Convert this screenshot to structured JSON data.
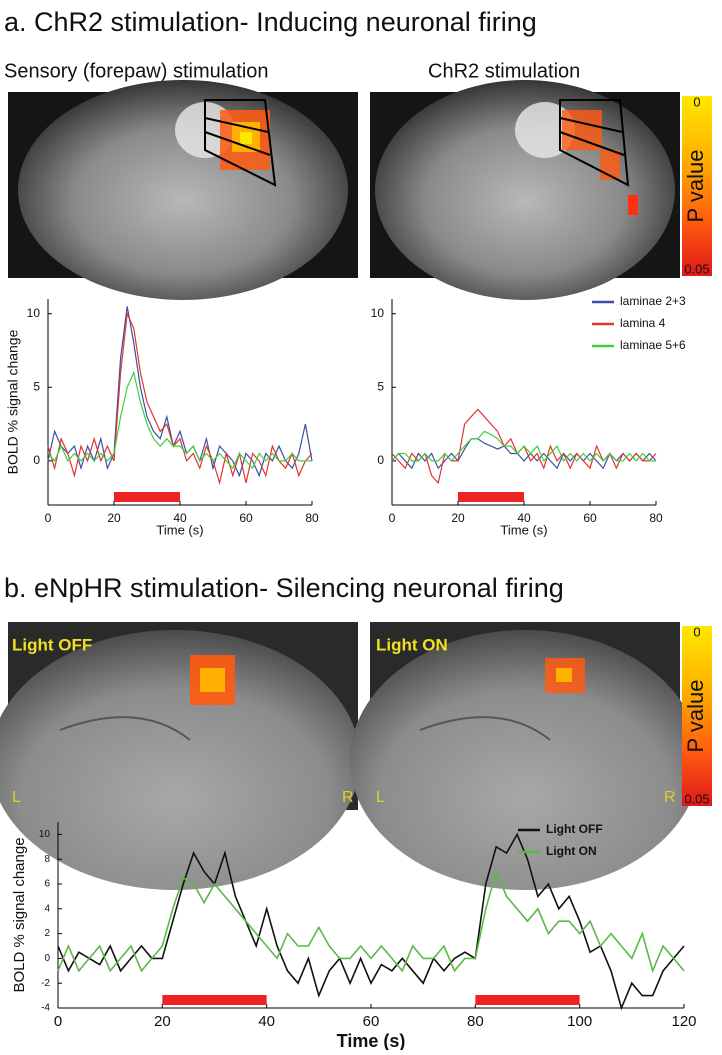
{
  "panel_a": {
    "title": "a. ChR2 stimulation- Inducing neuronal firing",
    "image_titles": [
      "Sensory (forepaw) stimulation",
      "ChR2 stimulation"
    ],
    "colorbar": {
      "label": "P value",
      "ticks": [
        0,
        0.05
      ]
    }
  },
  "panel_b": {
    "title": "b. eNpHR stimulation- Silencing neuronal firing",
    "image_labels": [
      "Light OFF",
      "Light ON"
    ],
    "side_labels": [
      "L",
      "R",
      "L",
      "R"
    ],
    "colorbar": {
      "label": "P value",
      "ticks": [
        0,
        0.05
      ]
    }
  },
  "chart_data": [
    {
      "type": "line",
      "xlabel": "Time (s)",
      "ylabel": "BOLD % signal change",
      "x": [
        0,
        2,
        4,
        6,
        8,
        10,
        12,
        14,
        16,
        18,
        20,
        22,
        24,
        26,
        28,
        30,
        32,
        34,
        36,
        38,
        40,
        42,
        44,
        46,
        48,
        50,
        52,
        54,
        56,
        58,
        60,
        62,
        64,
        66,
        68,
        70,
        72,
        74,
        76,
        78,
        80
      ],
      "series": [
        {
          "color": "#3b4fa6",
          "values": [
            0,
            2,
            1,
            0.5,
            1,
            -0.5,
            1,
            0,
            1.5,
            -0.5,
            0.5,
            7,
            10.5,
            8,
            5,
            3,
            2,
            1.5,
            3,
            1,
            2,
            0.5,
            1,
            0,
            1.5,
            -0.5,
            1,
            0.5,
            0,
            -1,
            0.5,
            0,
            -1,
            0.5,
            0,
            1,
            0,
            -0.5,
            0.5,
            2.5,
            0
          ]
        },
        {
          "color": "#e0342c",
          "values": [
            1,
            -0.5,
            1.5,
            0.5,
            -1,
            1,
            0,
            1.5,
            0,
            1,
            0,
            6,
            10,
            9,
            6,
            4,
            3,
            2,
            2.5,
            1,
            1.5,
            0,
            0.5,
            -0.5,
            1,
            0,
            -1.5,
            0.5,
            -1,
            0.5,
            -1.5,
            0.5,
            0,
            -1,
            1,
            0,
            -0.5,
            0.5,
            -1,
            0,
            0.5
          ]
        },
        {
          "color": "#3ecf3e",
          "values": [
            0.5,
            0,
            1,
            0,
            0.5,
            0,
            0.5,
            0,
            0.5,
            0,
            0.5,
            3,
            5,
            6,
            4,
            2.5,
            1.5,
            1,
            1.5,
            1,
            1,
            0.5,
            1,
            0,
            0.5,
            0,
            0.5,
            0,
            -0.5,
            0.5,
            0,
            -0.5,
            0.5,
            0,
            0.5,
            0,
            0,
            0.5,
            0,
            0,
            0
          ]
        }
      ],
      "stimuli": [
        [
          20,
          40
        ]
      ],
      "stimulus_color": "#ee2222",
      "xlim": [
        0,
        80
      ],
      "xticks": [
        0,
        20,
        40,
        60,
        80
      ],
      "ylim": [
        -3,
        11
      ],
      "yticks": [
        0,
        5,
        10
      ]
    },
    {
      "type": "line",
      "xlabel": "Time (s)",
      "x": [
        0,
        2,
        4,
        6,
        8,
        10,
        12,
        14,
        16,
        18,
        20,
        22,
        24,
        26,
        28,
        30,
        32,
        34,
        36,
        38,
        40,
        42,
        44,
        46,
        48,
        50,
        52,
        54,
        56,
        58,
        60,
        62,
        64,
        66,
        68,
        70,
        72,
        74,
        76,
        78,
        80
      ],
      "series": [
        {
          "name": "laminae 2+3",
          "color": "#3b4fa6",
          "values": [
            0,
            0.5,
            0,
            -0.5,
            0.5,
            0,
            0.5,
            -0.5,
            0,
            0.5,
            0,
            0.8,
            1.5,
            1.5,
            1.2,
            1,
            0.8,
            1,
            0.5,
            0.5,
            0,
            0.5,
            0,
            0.5,
            0,
            -0.5,
            0.5,
            0,
            0.5,
            0,
            0.5,
            0,
            -0.5,
            0.5,
            0,
            0.5,
            0,
            0.5,
            0,
            0.5,
            0
          ]
        },
        {
          "name": "lamina 4",
          "color": "#e0342c",
          "values": [
            0.5,
            0,
            -0.5,
            0.5,
            0,
            0.5,
            -1,
            -1.5,
            0.5,
            0,
            0,
            2.5,
            3,
            3.5,
            3,
            2.5,
            2,
            1,
            1.5,
            0.5,
            1,
            0,
            0.5,
            -0.5,
            1,
            0,
            0.5,
            -0.5,
            0.5,
            0,
            -0.5,
            1,
            0,
            0.5,
            -0.5,
            0.5,
            0,
            0.5,
            0,
            0,
            0.5
          ]
        },
        {
          "name": "laminae 5+6",
          "color": "#3ecf3e",
          "values": [
            0,
            0.5,
            0.5,
            0,
            0,
            0.5,
            0,
            0,
            0.5,
            0,
            0.5,
            1,
            1.5,
            1.5,
            2,
            1.8,
            1.5,
            1,
            1,
            0.5,
            1,
            0.5,
            1,
            0,
            0.5,
            1,
            0,
            0.5,
            0,
            0.5,
            0,
            0.5,
            0,
            0.5,
            0,
            0,
            0.5,
            0,
            0.5,
            0,
            0
          ]
        }
      ],
      "stimuli": [
        [
          20,
          40
        ]
      ],
      "stimulus_color": "#ee2222",
      "legend": "upper right",
      "xlim": [
        0,
        80
      ],
      "xticks": [
        0,
        20,
        40,
        60,
        80
      ],
      "ylim": [
        -3,
        11
      ],
      "yticks": [
        0,
        5,
        10
      ]
    },
    {
      "type": "line",
      "xlabel": "Time (s)",
      "ylabel": "BOLD % signal change",
      "x": [
        0,
        2,
        4,
        6,
        8,
        10,
        12,
        14,
        16,
        18,
        20,
        22,
        24,
        26,
        28,
        30,
        32,
        34,
        36,
        38,
        40,
        42,
        44,
        46,
        48,
        50,
        52,
        54,
        56,
        58,
        60,
        62,
        64,
        66,
        68,
        70,
        72,
        74,
        76,
        78,
        80,
        82,
        84,
        86,
        88,
        90,
        92,
        94,
        96,
        98,
        100,
        102,
        104,
        106,
        108,
        110,
        112,
        114,
        116,
        118,
        120
      ],
      "series": [
        {
          "name": "Light OFF",
          "color": "#111111",
          "values": [
            1,
            -1,
            0.5,
            0,
            -0.5,
            1,
            -1,
            0,
            1,
            0,
            0,
            3,
            6,
            8.5,
            7,
            6,
            8.5,
            5,
            3,
            1,
            4,
            1,
            -1,
            -2,
            0,
            -3,
            -1,
            0,
            -2,
            0,
            -2,
            -0.5,
            -1,
            0,
            -1,
            -2,
            0,
            -1,
            0,
            0.5,
            0,
            6,
            9,
            8.5,
            10,
            8,
            5,
            6,
            4,
            5,
            3,
            0.5,
            1,
            -1,
            -4,
            -2,
            -3,
            -3,
            -1,
            0,
            1
          ]
        },
        {
          "name": "Light ON",
          "color": "#5db84a",
          "values": [
            -1,
            1,
            -1,
            0,
            1,
            -1,
            0,
            1,
            -1,
            0,
            1,
            4,
            6.5,
            6,
            4.5,
            6,
            5,
            4,
            3,
            2,
            1,
            0,
            2,
            1,
            1,
            2.5,
            1,
            0,
            0,
            1,
            0,
            1,
            0,
            -1,
            1,
            0,
            0,
            1,
            -1,
            0,
            0,
            4,
            7,
            5,
            4,
            3,
            4,
            2,
            3,
            3,
            2,
            3,
            1,
            2,
            1,
            0,
            2,
            -1,
            1,
            0,
            -1
          ]
        }
      ],
      "stimuli": [
        [
          20,
          40
        ],
        [
          80,
          100
        ]
      ],
      "stimulus_color": "#ee2222",
      "legend": "upper right",
      "xlim": [
        0,
        120
      ],
      "xticks": [
        0,
        20,
        40,
        60,
        80,
        100,
        120
      ],
      "ylim": [
        -4,
        11
      ],
      "yticks": [
        -4,
        -2,
        0,
        2,
        4,
        6,
        8,
        10
      ]
    }
  ]
}
